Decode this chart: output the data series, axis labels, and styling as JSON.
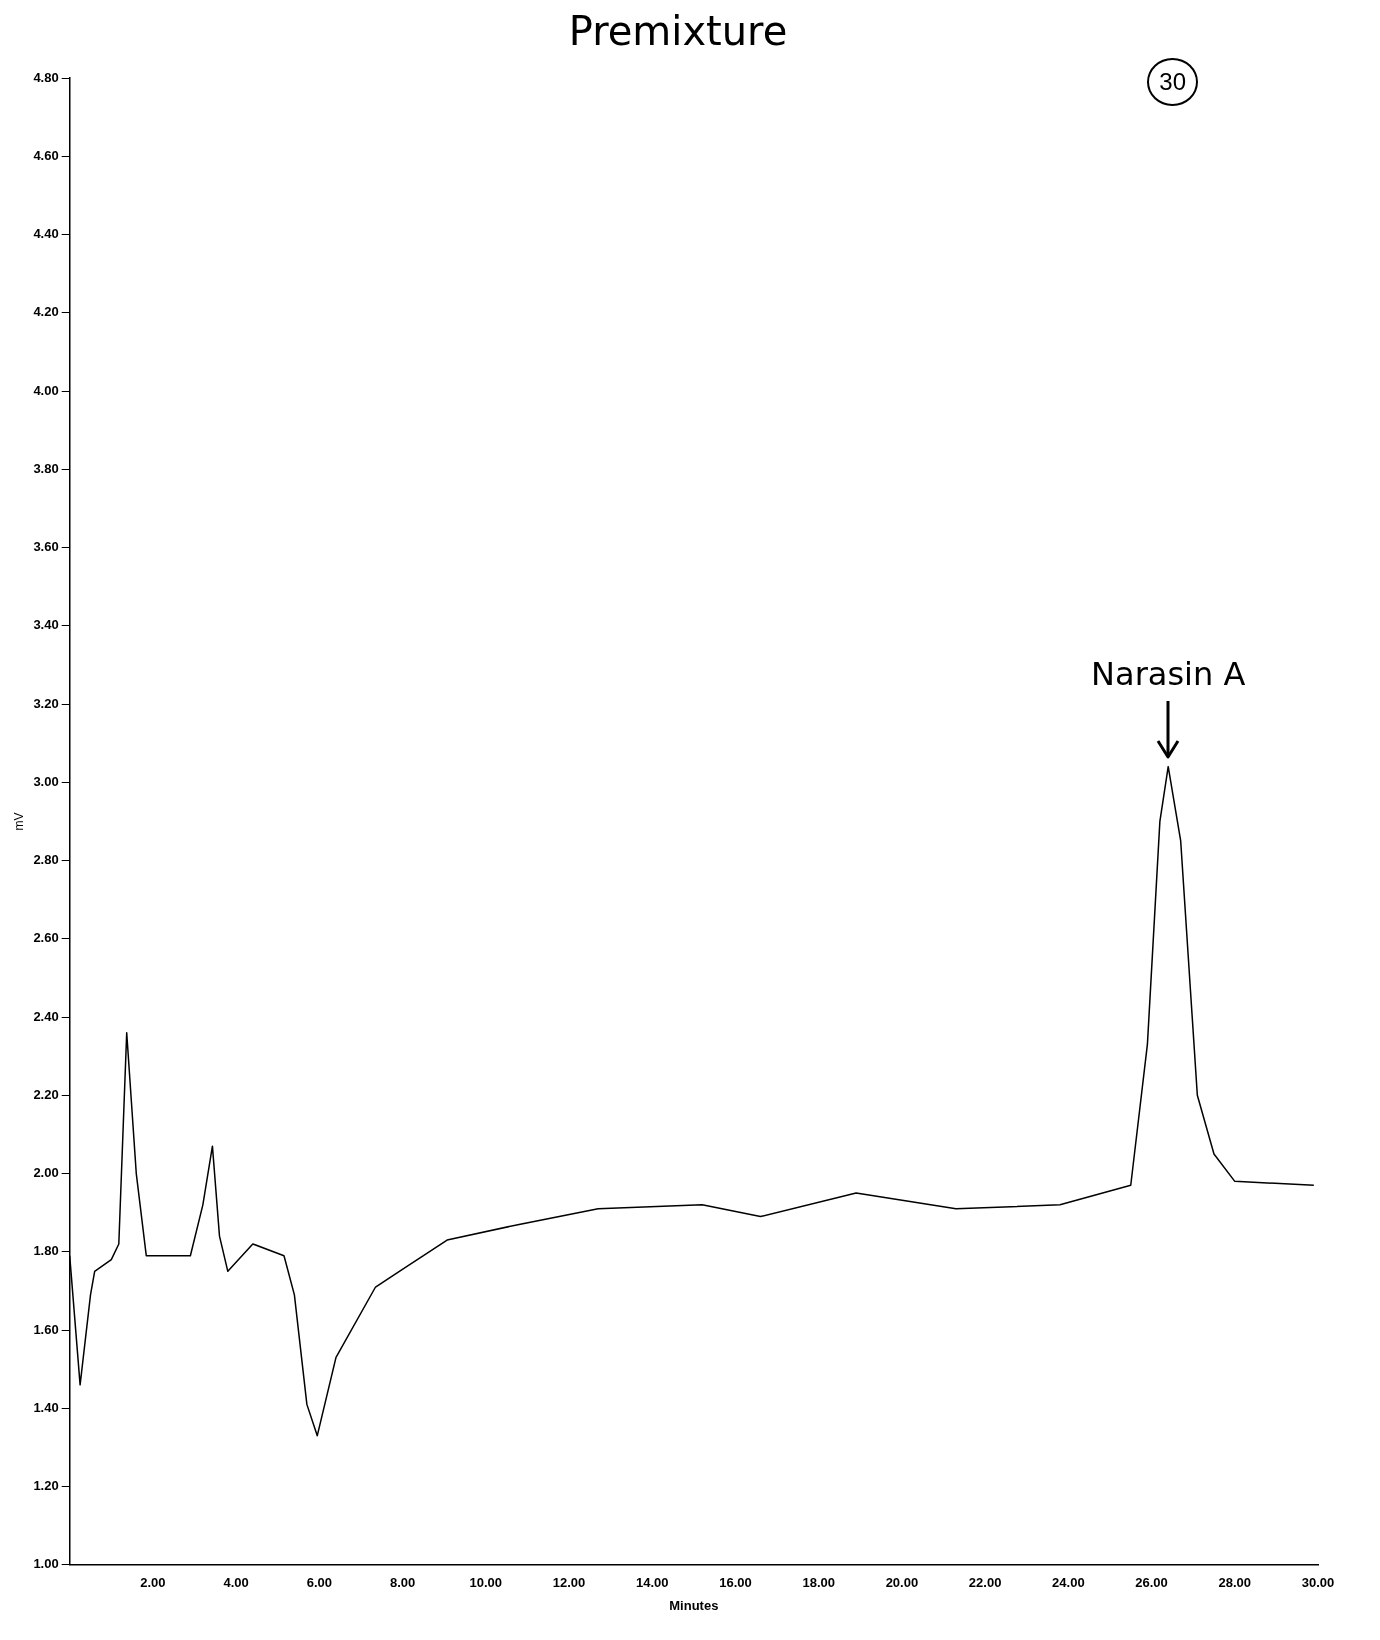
{
  "chart_data": {
    "type": "line",
    "title": "Premixture",
    "xlabel": "Minutes",
    "ylabel": "mV",
    "annotations": [
      "30",
      {
        "text": "Narasin A",
        "x": 26.4,
        "y": 3.04
      }
    ],
    "series": [
      {
        "color": "#000000",
        "x": [
          0,
          0.25,
          0.5,
          0.6,
          1.0,
          1.18,
          1.37,
          1.6,
          1.84,
          2.9,
          3.2,
          3.43,
          3.6,
          3.8,
          4.4,
          5.15,
          5.4,
          5.7,
          5.95,
          6.4,
          7.35,
          9.07,
          10.8,
          12.7,
          15.2,
          16.6,
          18.9,
          21.3,
          23.8,
          25.5,
          25.9,
          26.2,
          26.4,
          26.7,
          27.1,
          27.5,
          28.0,
          29.9
        ],
        "values": [
          1.79,
          1.46,
          1.69,
          1.75,
          1.78,
          1.82,
          2.36,
          2.0,
          1.79,
          1.79,
          1.92,
          2.07,
          1.84,
          1.75,
          1.82,
          1.79,
          1.69,
          1.41,
          1.33,
          1.53,
          1.71,
          1.83,
          1.87,
          1.91,
          1.92,
          1.89,
          1.95,
          1.91,
          1.92,
          1.97,
          2.33,
          2.9,
          3.04,
          2.85,
          2.2,
          2.05,
          1.98,
          1.97
        ]
      }
    ],
    "xlim": [
      0,
      30
    ],
    "xticks": [
      {
        "value": 2,
        "label": "2.00"
      },
      {
        "value": 4,
        "label": "4.00"
      },
      {
        "value": 6,
        "label": "6.00"
      },
      {
        "value": 8,
        "label": "8.00"
      },
      {
        "value": 10,
        "label": "10.00"
      },
      {
        "value": 12,
        "label": "12.00"
      },
      {
        "value": 14,
        "label": "14.00"
      },
      {
        "value": 16,
        "label": "16.00"
      },
      {
        "value": 18,
        "label": "18.00"
      },
      {
        "value": 20,
        "label": "20.00"
      },
      {
        "value": 22,
        "label": "22.00"
      },
      {
        "value": 24,
        "label": "24.00"
      },
      {
        "value": 26,
        "label": "26.00"
      },
      {
        "value": 28,
        "label": "28.00"
      },
      {
        "value": 30,
        "label": "30.00"
      }
    ],
    "ylim": [
      1,
      4.8
    ],
    "yticks": [
      {
        "value": 1,
        "label": "1.00"
      },
      {
        "value": 1.2,
        "label": "1.20"
      },
      {
        "value": 1.4,
        "label": "1.40"
      },
      {
        "value": 1.6,
        "label": "1.60"
      },
      {
        "value": 1.8,
        "label": "1.80"
      },
      {
        "value": 2,
        "label": "2.00"
      },
      {
        "value": 2.2,
        "label": "2.20"
      },
      {
        "value": 2.4,
        "label": "2.40"
      },
      {
        "value": 2.6,
        "label": "2.60"
      },
      {
        "value": 2.8,
        "label": "2.80"
      },
      {
        "value": 3,
        "label": "3.00"
      },
      {
        "value": 3.2,
        "label": "3.20"
      },
      {
        "value": 3.4,
        "label": "3.40"
      },
      {
        "value": 3.6,
        "label": "3.60"
      },
      {
        "value": 3.8,
        "label": "3.80"
      },
      {
        "value": 4,
        "label": "4.00"
      },
      {
        "value": 4.2,
        "label": "4.20"
      },
      {
        "value": 4.4,
        "label": "4.40"
      },
      {
        "value": 4.6,
        "label": "4.60"
      },
      {
        "value": 4.8,
        "label": "4.80"
      }
    ],
    "grid": false,
    "legend": false,
    "marker": "none",
    "line_style": "solid"
  }
}
